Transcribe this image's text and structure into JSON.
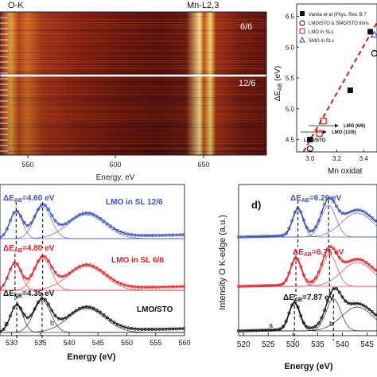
{
  "panel_a": {
    "label_ok": "O-K",
    "label_mn": "Mn-L2,3",
    "label_66": "6/6",
    "label_126": "12/6",
    "xlabel": "Energy, eV",
    "ticks": [
      "550",
      "600",
      "650"
    ],
    "colors": {
      "hot": "#ffffff",
      "warm": "#f7c040",
      "mid": "#c0501a",
      "dark": "#5a0a0a"
    }
  },
  "panel_b": {
    "ylabel": "ΔE",
    "ylabel_sub": "AB",
    "ylabel_unit": " (eV)",
    "xlabel": "Mn oxidat",
    "yticks": [
      "4.5",
      "5.0",
      "5.5",
      "6.0",
      "6.5"
    ],
    "xticks": [
      "3.0",
      "3.2",
      "3.4"
    ],
    "legend": [
      "Varela et al (Phys. Rev. B 7",
      "LMO/STO & SMO/STO films",
      "LMO in SLs",
      "SMO in SLs"
    ],
    "annotations": [
      "LMO (6/6)",
      "LMO (12/6)",
      "LMO/STO"
    ]
  },
  "panel_c": {
    "xlabel": "Energy (eV)",
    "xticks": [
      "530",
      "535",
      "540",
      "545",
      "550",
      "555",
      "560"
    ],
    "tick_first": "530",
    "curves": [
      {
        "name": "LMO in SL 12/6",
        "delta": "ΔE",
        "sub": "AB",
        "value": "=4.60 eV",
        "color": "#3a4fb8"
      },
      {
        "name": "LMO in SL 6/6",
        "delta": "ΔE",
        "sub": "AB",
        "value": "=4.80 eV",
        "color": "#e0202a"
      },
      {
        "name": "LMO/STO",
        "delta": "ΔE",
        "sub": "AB",
        "value": "=4.35 eV",
        "color": "#111111"
      }
    ],
    "peak_a": "a",
    "peak_b": "b"
  },
  "panel_d": {
    "label": "d)",
    "ylabel": "Intensity O K-edge (a.u.)",
    "xlabel": "Energy (eV)",
    "xticks": [
      "520",
      "525",
      "530",
      "535",
      "540",
      "545"
    ],
    "curves": [
      {
        "delta": "ΔE",
        "sub": "AB",
        "value": "=6.20 eV",
        "color": "#3a4fb8"
      },
      {
        "delta": "ΔE",
        "sub": "AB",
        "value": "=6.75 eV",
        "color": "#e0202a"
      },
      {
        "delta": "ΔE",
        "sub": "AB",
        "value": "=7.87 eV",
        "color": "#111111"
      }
    ],
    "peak_a": "a",
    "peak_b": "b"
  },
  "chart_data": [
    {
      "type": "heatmap",
      "title": "",
      "xlabel": "Energy, eV",
      "x_ticks": [
        550,
        600,
        650
      ],
      "annotations": [
        "O-K",
        "Mn-L2,3",
        "6/6",
        "12/6"
      ]
    },
    {
      "type": "scatter",
      "xlabel": "Mn oxidat",
      "ylabel": "ΔEAB (eV)",
      "xlim": [
        2.9,
        3.5
      ],
      "ylim": [
        4.3,
        6.7
      ],
      "series": [
        {
          "name": "Varela et al (Phys. Rev. B 7",
          "marker": "filled-square",
          "color": "#111111",
          "points": [
            [
              3.0,
              4.5
            ],
            [
              3.3,
              5.3
            ],
            [
              3.45,
              6.25
            ]
          ]
        },
        {
          "name": "LMO/STO & SMO/STO films",
          "marker": "open-circle",
          "color": "#111111",
          "points": [
            [
              3.0,
              4.35
            ],
            [
              3.48,
              5.9
            ]
          ]
        },
        {
          "name": "LMO in SLs",
          "marker": "open-square",
          "color": "#d02020",
          "points": [
            [
              3.07,
              4.6
            ],
            [
              3.1,
              4.8
            ]
          ]
        },
        {
          "name": "SMO in SLs",
          "marker": "open-triangle",
          "color": "#3a4fb8",
          "points": [
            [
              3.48,
              6.2
            ]
          ]
        }
      ],
      "fit_line": {
        "color": "#d02020",
        "style": "dashed",
        "points": [
          [
            2.95,
            4.3
          ],
          [
            3.5,
            6.4
          ]
        ]
      }
    },
    {
      "type": "line",
      "xlabel": "Energy (eV)",
      "xlim": [
        528,
        560
      ],
      "x_ticks": [
        530,
        535,
        540,
        545,
        550,
        555,
        560
      ],
      "series": [
        {
          "name": "LMO in SL 12/6",
          "delta_eab": 4.6,
          "peak_a": 530.8,
          "peak_b": 535.4,
          "peak_c": 543
        },
        {
          "name": "LMO in SL 6/6",
          "delta_eab": 4.8,
          "peak_a": 530.6,
          "peak_b": 535.4,
          "peak_c": 543
        },
        {
          "name": "LMO/STO",
          "delta_eab": 4.35,
          "peak_a": 530.9,
          "peak_b": 535.3,
          "peak_c": 543
        }
      ]
    },
    {
      "type": "line",
      "xlabel": "Energy (eV)",
      "ylabel": "Intensity O K-edge (a.u.)",
      "xlim": [
        519,
        547
      ],
      "x_ticks": [
        520,
        525,
        530,
        535,
        540,
        545
      ],
      "series": [
        {
          "delta_eab": 6.2,
          "peak_a": 531.0,
          "peak_b": 537.2,
          "peak_c": 543
        },
        {
          "delta_eab": 6.75,
          "peak_a": 530.6,
          "peak_b": 537.4,
          "peak_c": 543
        },
        {
          "delta_eab": 7.87,
          "peak_a": 530.3,
          "peak_b": 538.2,
          "peak_c": 543
        }
      ]
    }
  ]
}
